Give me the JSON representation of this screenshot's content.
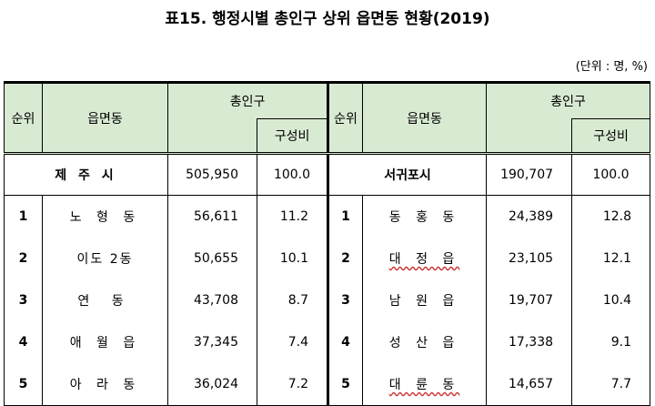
{
  "title": "표15. 행정시별 총인구 상위 읍면동 현황(2019)",
  "unit_note": "(단위 : 명, %)",
  "header": {
    "rank": "순위",
    "district": "읍면동",
    "total_pop": "총인구",
    "share": "구성비"
  },
  "left": {
    "total": {
      "name": "제 주 시",
      "population": "505,950",
      "share": "100.0"
    },
    "rows": [
      {
        "rank": "1",
        "name": "노 형 동",
        "population": "56,611",
        "share": "11.2"
      },
      {
        "rank": "2",
        "name": "이도 2동",
        "population": "50,655",
        "share": "10.1"
      },
      {
        "rank": "3",
        "name": "연 동",
        "population": "43,708",
        "share": "8.7"
      },
      {
        "rank": "4",
        "name": "애 월 읍",
        "population": "37,345",
        "share": "7.4"
      },
      {
        "rank": "5",
        "name": "아 라 동",
        "population": "36,024",
        "share": "7.2"
      }
    ]
  },
  "right": {
    "total": {
      "name": "서귀포시",
      "population": "190,707",
      "share": "100.0"
    },
    "rows": [
      {
        "rank": "1",
        "name": "동 홍 동",
        "population": "24,389",
        "share": "12.8"
      },
      {
        "rank": "2",
        "name": "대 정 읍",
        "population": "23,105",
        "share": "12.1"
      },
      {
        "rank": "3",
        "name": "남 원 읍",
        "population": "19,707",
        "share": "10.4"
      },
      {
        "rank": "4",
        "name": "성 산 읍",
        "population": "17,338",
        "share": "9.1"
      },
      {
        "rank": "5",
        "name": "대 륜 동",
        "population": "14,657",
        "share": "7.7"
      }
    ]
  }
}
